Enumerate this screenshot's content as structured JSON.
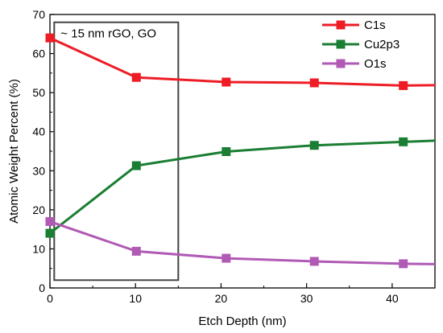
{
  "chart_data": {
    "type": "line",
    "xlabel": "Etch Depth (nm)",
    "ylabel": "Atomic Weight Percent (%)",
    "xlim": [
      0,
      45
    ],
    "ylim": [
      0,
      70
    ],
    "xticks": [
      0,
      10,
      20,
      30,
      40
    ],
    "yticks": [
      0,
      10,
      20,
      30,
      40,
      50,
      60,
      70
    ],
    "legend_position": "top-right",
    "grid": false,
    "annotation": {
      "text": "~ 15 nm rGO, GO",
      "x_range": [
        0.5,
        15
      ],
      "y_range": [
        2,
        68
      ]
    },
    "series": [
      {
        "name": "C1s",
        "color": "#ee1c25",
        "marker": "square",
        "x": [
          0,
          10.1,
          20.6,
          30.9,
          41.3
        ],
        "y": [
          64.0,
          53.9,
          52.7,
          52.5,
          51.8
        ],
        "line_end": [
          45,
          51.9
        ]
      },
      {
        "name": "Cu2p3",
        "color": "#1a7e33",
        "marker": "square",
        "x": [
          0,
          10.1,
          20.6,
          30.9,
          41.3
        ],
        "y": [
          14.0,
          31.3,
          34.9,
          36.5,
          37.4
        ],
        "line_end": [
          45,
          37.7
        ]
      },
      {
        "name": "O1s",
        "color": "#b05ab5",
        "marker": "square",
        "x": [
          0,
          10.1,
          20.6,
          30.9,
          41.3
        ],
        "y": [
          17.0,
          9.4,
          7.6,
          6.8,
          6.2
        ],
        "line_end": [
          45,
          6.1
        ]
      }
    ]
  }
}
